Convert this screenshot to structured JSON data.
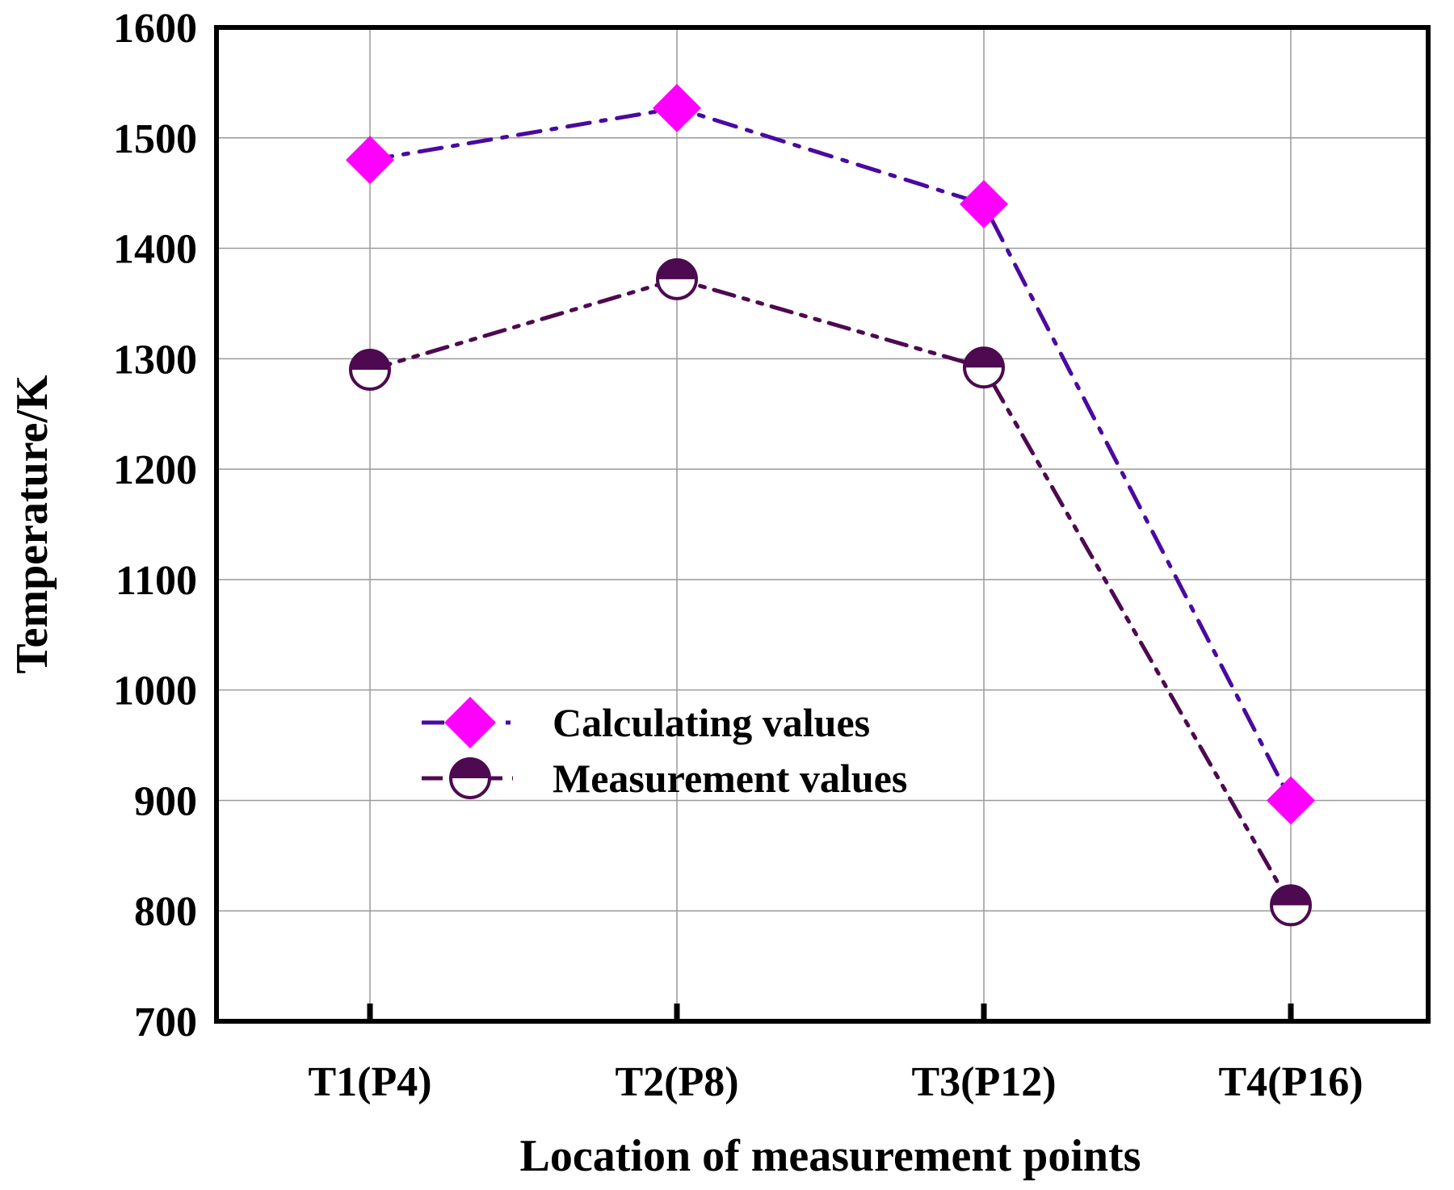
{
  "chart_data": {
    "type": "line",
    "title": "",
    "xlabel": "Location of measurement points",
    "ylabel": "Temperature/K",
    "categories": [
      "T1(P4)",
      "T2(P8)",
      "T3(P12)",
      "T4(P16)"
    ],
    "ylim": [
      700,
      1600
    ],
    "yticks": [
      700,
      800,
      900,
      1000,
      1100,
      1200,
      1300,
      1400,
      1500,
      1600
    ],
    "grid": true,
    "legend_position": "center-left",
    "series": [
      {
        "name": "Calculating values",
        "values": [
          1480,
          1527,
          1440,
          900
        ],
        "marker": "diamond",
        "marker_color": "#ff00ff",
        "line_color": "#4a0aa0",
        "line_style": "dash-dot"
      },
      {
        "name": "Measurement values",
        "values": [
          1290,
          1372,
          1292,
          805
        ],
        "marker": "half-filled-circle",
        "marker_color": "#4d0a50",
        "line_color": "#4d0a50",
        "line_style": "dash-dot-dot"
      }
    ]
  }
}
